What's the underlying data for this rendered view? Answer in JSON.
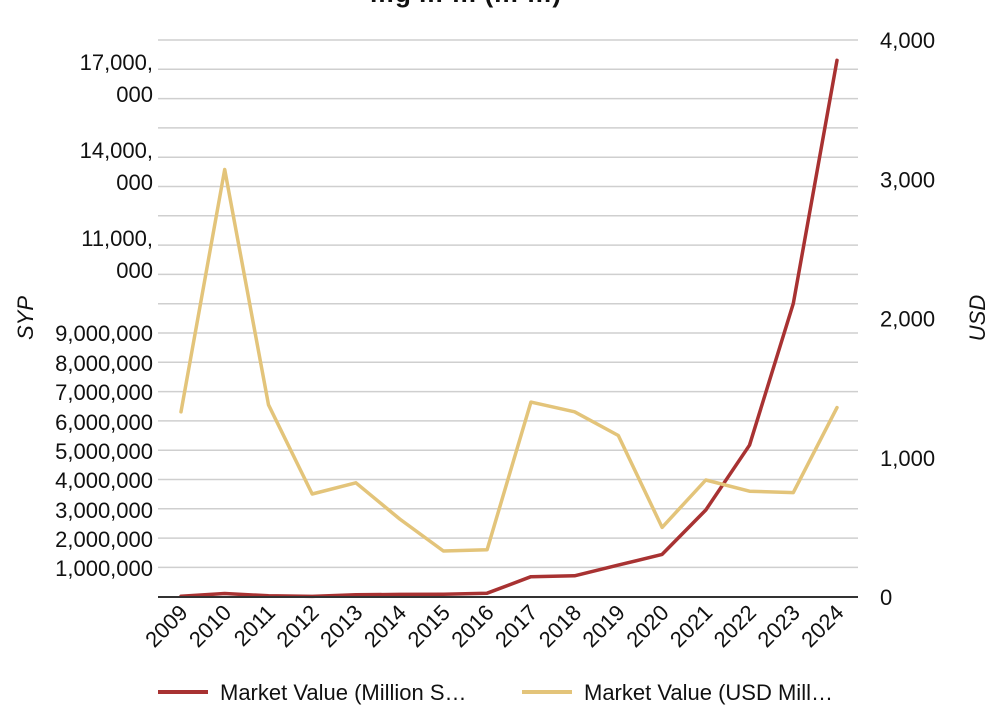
{
  "chart_data": {
    "type": "line",
    "title": "…g … … (… …)",
    "x": [
      "2009",
      "2010",
      "2011",
      "2012",
      "2013",
      "2014",
      "2015",
      "2016",
      "2017",
      "2018",
      "2019",
      "2020",
      "2021",
      "2022",
      "2023",
      "2024"
    ],
    "y_left": {
      "label": "SYP",
      "scale": "nonlinear",
      "ticks": [
        {
          "label": "1,000,000",
          "value": 1000000
        },
        {
          "label": "2,000,000",
          "value": 2000000
        },
        {
          "label": "3,000,000",
          "value": 3000000
        },
        {
          "label": "4,000,000",
          "value": 4000000
        },
        {
          "label": "5,000,000",
          "value": 5000000
        },
        {
          "label": "6,000,000",
          "value": 6000000
        },
        {
          "label": "7,000,000",
          "value": 7000000
        },
        {
          "label": "8,000,000",
          "value": 8000000
        },
        {
          "label": "9,000,000",
          "value": 9000000
        },
        {
          "label": [
            "11,000,",
            "000"
          ],
          "value": 11000000
        },
        {
          "label": [
            "14,000,",
            "000"
          ],
          "value": 14000000
        },
        {
          "label": [
            "17,000,",
            "000"
          ],
          "value": 17000000
        }
      ]
    },
    "y_right": {
      "label": "USD",
      "ylim": [
        0,
        4000
      ],
      "ticks": [
        {
          "label": "0",
          "value": 0
        },
        {
          "label": "1,000",
          "value": 1000
        },
        {
          "label": "2,000",
          "value": 2000
        },
        {
          "label": "3,000",
          "value": 3000
        },
        {
          "label": "4,000",
          "value": 4000
        }
      ]
    },
    "grid": true,
    "legend_position": "bottom",
    "series": [
      {
        "name": "Market Value (Million S…",
        "axis": "left",
        "color": "#a83232",
        "values": [
          27000,
          120000,
          40000,
          22000,
          75000,
          90000,
          95000,
          130000,
          700000,
          730000,
          1100000,
          1470000,
          3000000,
          5200000,
          10000000,
          18300000
        ]
      },
      {
        "name": "Market Value (USD Mill…",
        "axis": "right",
        "color": "#e3c47a",
        "values": [
          1330,
          3070,
          1380,
          740,
          820,
          560,
          330,
          340,
          1400,
          1330,
          1160,
          500,
          840,
          760,
          750,
          1360
        ]
      }
    ]
  }
}
